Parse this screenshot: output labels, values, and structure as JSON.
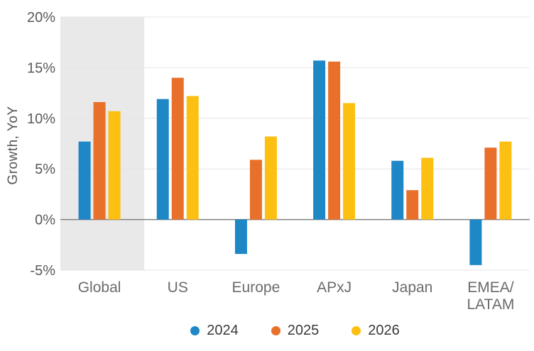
{
  "chart_data": {
    "type": "bar",
    "title": "",
    "xlabel": "",
    "ylabel": "Growth, YoY",
    "categories": [
      "Global",
      "US",
      "Europe",
      "APxJ",
      "Japan",
      "EMEA/\nLATAM"
    ],
    "series": [
      {
        "name": "2024",
        "color": "#1e87c6",
        "values": [
          7.7,
          11.9,
          -3.4,
          15.7,
          5.8,
          -4.5
        ]
      },
      {
        "name": "2025",
        "color": "#e8702a",
        "values": [
          11.6,
          14.0,
          5.9,
          15.6,
          2.9,
          7.1
        ]
      },
      {
        "name": "2026",
        "color": "#fcc013",
        "values": [
          10.7,
          12.2,
          8.2,
          11.5,
          6.1,
          7.7
        ]
      }
    ],
    "ylim": [
      -5,
      20
    ],
    "yticks": [
      20,
      15,
      10,
      5,
      0,
      -5
    ],
    "ytick_labels": [
      "20%",
      "15%",
      "10%",
      "5%",
      "0%",
      "-5%"
    ],
    "grid": true,
    "legend_position": "bottom",
    "highlight_category": "Global",
    "colors": {
      "highlight_band": "#e9e9e9",
      "gridline": "#e4e4e4",
      "zero_line": "#808080",
      "tick_text": "#595959",
      "category_text": "#6b6b6b",
      "legend_text": "#3a3a3a"
    }
  }
}
